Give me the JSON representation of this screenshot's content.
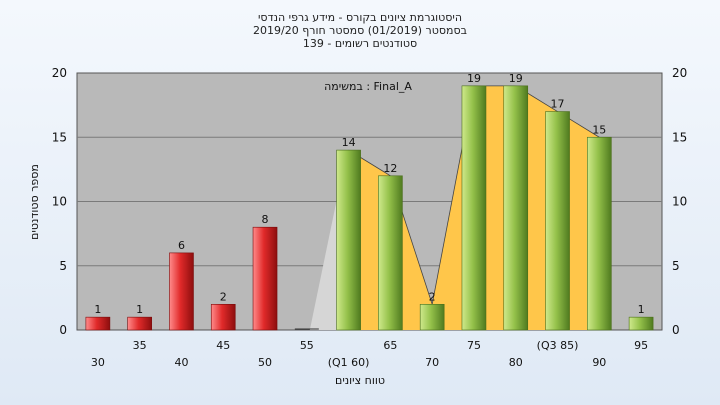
{
  "chart_data": {
    "type": "bar",
    "title_lines": [
      "היסטוגרמת ציונים בקורס - מידע גרפי הנדסי",
      "בסמסטר  (01/2019)  סמסטר חורף 2019/20",
      "סטודנטים רשומים - 139"
    ],
    "annotation": "במשימה : Final_A",
    "xlabel": "טווח ציונים",
    "ylabel": "מספר סטודנטים",
    "ylim": [
      0,
      20
    ],
    "yticks": [
      0,
      5,
      10,
      15,
      20
    ],
    "grid": true,
    "categories": [
      "30",
      "35",
      "40",
      "45",
      "50",
      "55",
      "(Q1 60)",
      "65",
      "70",
      "75",
      "80",
      "(Q3 85)",
      "90",
      "95"
    ],
    "values": [
      1,
      1,
      6,
      2,
      8,
      0,
      14,
      12,
      2,
      19,
      19,
      17,
      15,
      1
    ],
    "bar_colors": [
      "red",
      "red",
      "red",
      "red",
      "red",
      "red",
      "green",
      "green",
      "green",
      "green",
      "green",
      "green",
      "green",
      "green"
    ],
    "interquartile_band": {
      "from": "(Q1 60)",
      "to": "(Q3 85)"
    },
    "colors": {
      "red": "#e02828",
      "green": "#94c14a",
      "plot_bg": "#b9b9b9",
      "band_gray": "#d6d6d6",
      "band_yellow": "#ffc64a"
    }
  }
}
